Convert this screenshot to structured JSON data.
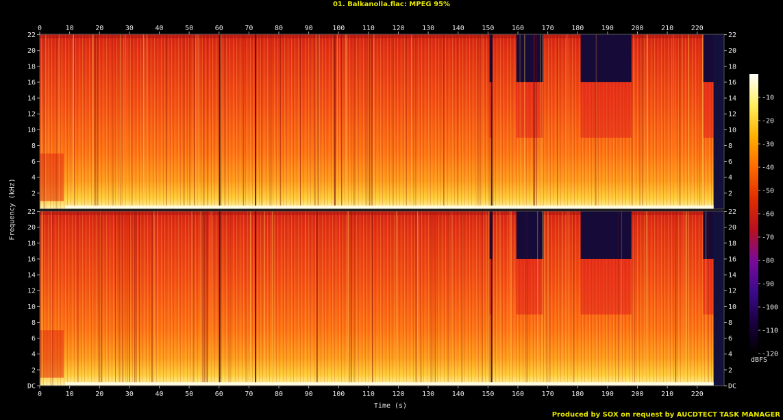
{
  "window": {
    "title": "01. Balkanolla.flac: MPEG 95%",
    "footer": "Produced by SOX on request by AUCDTECT TASK MANAGER"
  },
  "chart_data": {
    "type": "heatmap",
    "title": "01. Balkanolla.flac: MPEG 95%",
    "xlabel": "Time (s)",
    "ylabel": "Frequency (kHz)",
    "xlim": [
      0,
      229
    ],
    "ylim": [
      0,
      22.05
    ],
    "x_ticks": [
      0,
      10,
      20,
      30,
      40,
      50,
      60,
      70,
      80,
      90,
      100,
      110,
      120,
      130,
      140,
      150,
      160,
      170,
      180,
      190,
      200,
      210,
      220
    ],
    "y_ticks": [
      {
        "value": 0,
        "label": "DC"
      },
      {
        "value": 2,
        "label": "2"
      },
      {
        "value": 4,
        "label": "4"
      },
      {
        "value": 6,
        "label": "6"
      },
      {
        "value": 8,
        "label": "8"
      },
      {
        "value": 10,
        "label": "10"
      },
      {
        "value": 12,
        "label": "12"
      },
      {
        "value": 14,
        "label": "14"
      },
      {
        "value": 16,
        "label": "16"
      },
      {
        "value": 18,
        "label": "18"
      },
      {
        "value": 20,
        "label": "20"
      },
      {
        "value": 22,
        "label": "22"
      }
    ],
    "channels": [
      "top",
      "bottom"
    ],
    "lowpass_regions": [
      {
        "t_start": 150.5,
        "t_end": 151.5,
        "cutoff_khz": 16
      },
      {
        "t_start": 159.5,
        "t_end": 168.5,
        "cutoff_khz": 16
      },
      {
        "t_start": 181,
        "t_end": 198,
        "cutoff_khz": 16
      },
      {
        "t_start": 222,
        "t_end": 225.5,
        "cutoff_khz": 16
      }
    ],
    "colorbar": {
      "unit": "dBFS",
      "ticks": [
        -10,
        -20,
        -30,
        -40,
        -50,
        -60,
        -70,
        -80,
        -90,
        -100,
        -110,
        -120
      ],
      "range": [
        -120,
        0
      ],
      "colors": [
        "#000000",
        "#1a0040",
        "#3c0a8c",
        "#7a0a9a",
        "#b8101e",
        "#e03000",
        "#ff6a00",
        "#ffb000",
        "#ffef60",
        "#ffffff"
      ]
    }
  }
}
